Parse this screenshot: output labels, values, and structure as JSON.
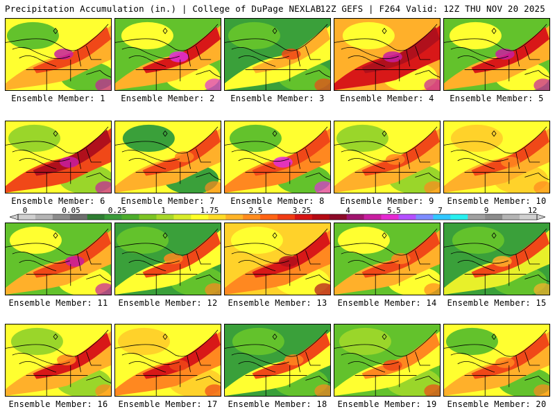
{
  "header": {
    "left_title": "Precipitation Accumulation (in.) | College of DuPage NEXLAB",
    "right_title": "12Z GEFS | F264 Valid: 12Z THU NOV 20 2025"
  },
  "colorbar": {
    "labels": [
      "0",
      "0.05",
      "0.25",
      "1",
      "1.75",
      "2.5",
      "3.25",
      "4",
      "5.5",
      "7",
      "9",
      "12"
    ],
    "colors": [
      "#d0d0d0",
      "#b4b4b4",
      "#8c8c8c",
      "#6e6e6e",
      "#2e7d32",
      "#3a9b3a",
      "#4cad2c",
      "#7cc424",
      "#a8d82a",
      "#d8ec2a",
      "#ffff28",
      "#ffdc28",
      "#ffb428",
      "#ff8c1e",
      "#ff6414",
      "#f03c14",
      "#d81414",
      "#b40a14",
      "#8c0a28",
      "#a0146e",
      "#c81ea0",
      "#e628d2",
      "#b450ff",
      "#7d8cff",
      "#32c8ff",
      "#28f0f0",
      "#a0a0a0",
      "#8c8c8c",
      "#b4b4b4",
      "#d0d0d0"
    ]
  },
  "members": [
    {
      "label": "Ensemble Member: 1"
    },
    {
      "label": "Ensemble Member: 2"
    },
    {
      "label": "Ensemble Member: 3"
    },
    {
      "label": "Ensemble Member: 4"
    },
    {
      "label": "Ensemble Member: 5"
    },
    {
      "label": "Ensemble Member: 6"
    },
    {
      "label": "Ensemble Member: 7"
    },
    {
      "label": "Ensemble Member: 8"
    },
    {
      "label": "Ensemble Member: 9"
    },
    {
      "label": "Ensemble Member: 10"
    },
    {
      "label": "Ensemble Member: 11"
    },
    {
      "label": "Ensemble Member: 12"
    },
    {
      "label": "Ensemble Member: 13"
    },
    {
      "label": "Ensemble Member: 14"
    },
    {
      "label": "Ensemble Member: 15"
    },
    {
      "label": "Ensemble Member: 16"
    },
    {
      "label": "Ensemble Member: 17"
    },
    {
      "label": "Ensemble Member: 18"
    },
    {
      "label": "Ensemble Member: 19"
    },
    {
      "label": "Ensemble Member: 20"
    }
  ]
}
